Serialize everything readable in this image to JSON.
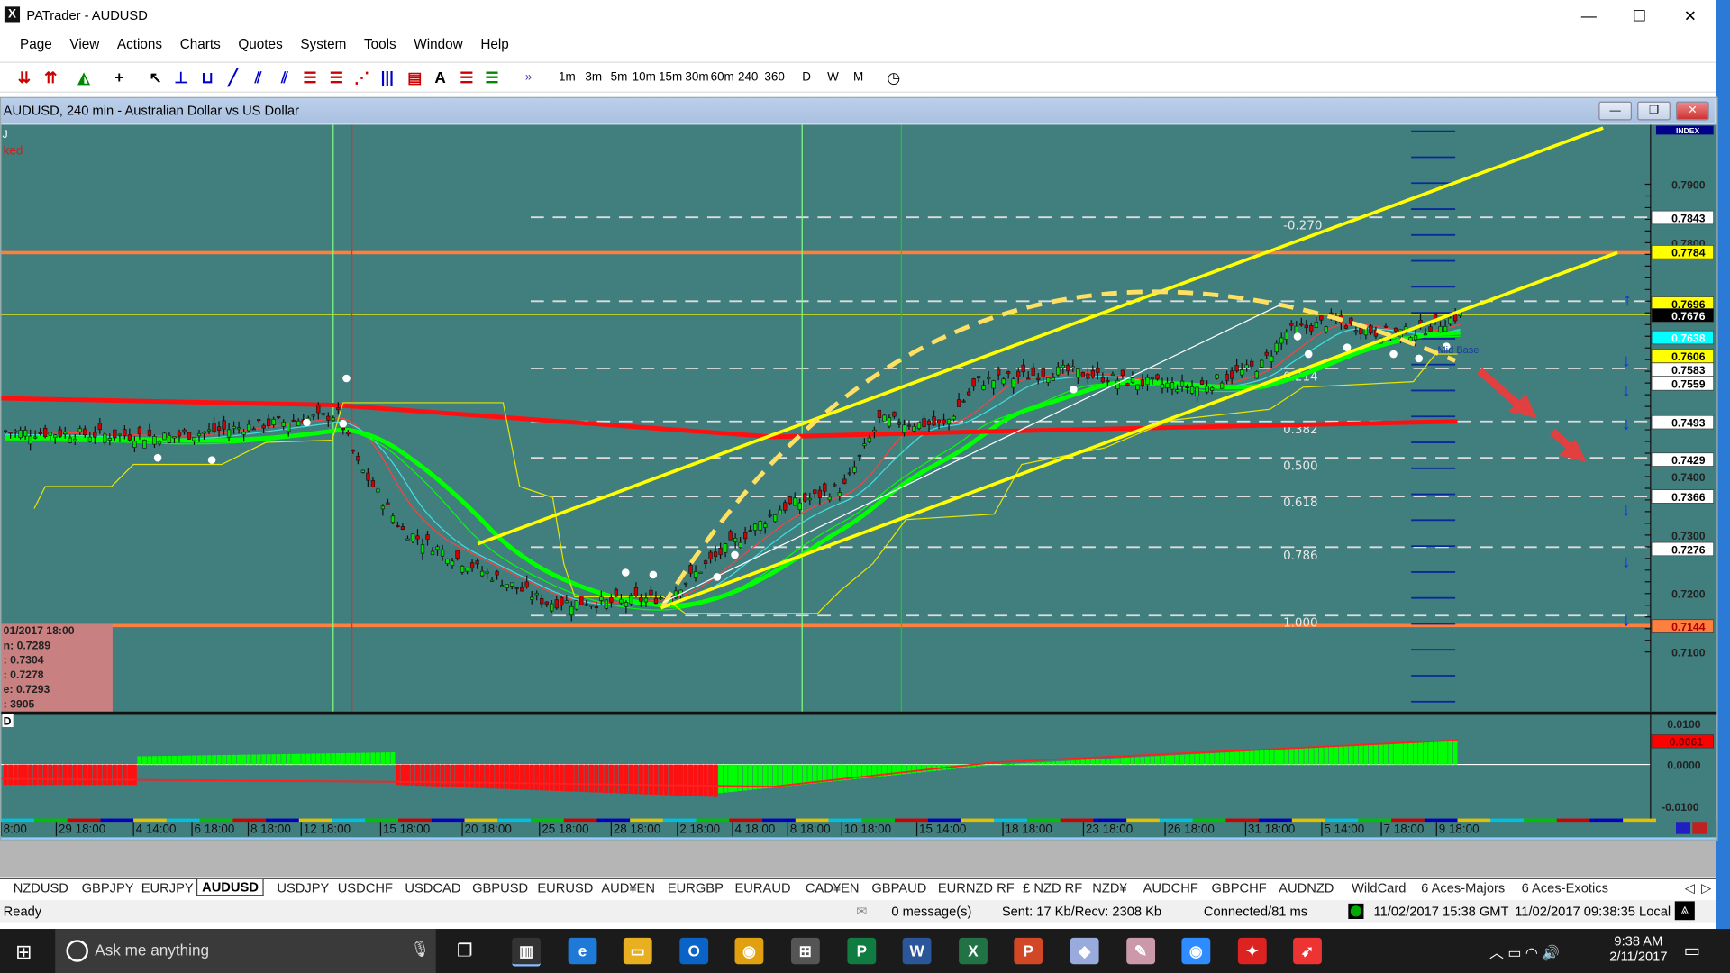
{
  "app": {
    "title": "PATrader - AUDUSD",
    "logo": "X",
    "minimize": "—",
    "maximize": "☐",
    "close": "✕"
  },
  "menu": [
    "Page",
    "View",
    "Actions",
    "Charts",
    "Quotes",
    "System",
    "Tools",
    "Window",
    "Help"
  ],
  "toolbar": {
    "tools": [
      "buy-arrows-icon",
      "sell-arrows-icon",
      "chart-type-icon",
      "crosshair-icon",
      "cursor-icon",
      "horizontal-line-icon",
      "vertical-line-icon",
      "trend-line-icon",
      "channel-icon",
      "regression-channel-icon",
      "fibonacci-retracement-icon",
      "fibonacci-extension-icon",
      "gann-fan-icon",
      "cycle-lines-icon",
      "price-label-icon",
      "text-icon",
      "pattern-icon",
      "rsi-icon"
    ],
    "overflow": "»",
    "timeframes": [
      "1m",
      "3m",
      "5m",
      "10m",
      "15m",
      "30m",
      "60m",
      "240",
      "360"
    ],
    "periods": [
      "D",
      "W",
      "M"
    ],
    "clock_icon": "clock-icon"
  },
  "chart": {
    "title": "AUDUSD, 240 min - Australian Dollar vs US Dollar",
    "left_marker": "J",
    "left_status": "ked",
    "index_label": "INDEX",
    "ohlc_box": {
      "date": "01/2017 18:00",
      "open": "n: 0.7289",
      "high": ": 0.7304",
      "low": ": 0.7278",
      "close": "e: 0.7293",
      "volume": ": 3905"
    },
    "fib_levels": [
      "-0.270",
      "0.214",
      "0.382",
      "0.500",
      "0.618",
      "0.786",
      "1.000"
    ],
    "annotation": "Mid Base",
    "price_axis": {
      "max": 0.79,
      "min": 0.71,
      "labels": [
        "0.7900",
        "0.7800",
        "0.7400",
        "0.7300",
        "0.7200",
        "0.7100"
      ]
    },
    "price_tags": [
      {
        "value": "0.7843",
        "bg": "#ffffff",
        "fg": "#000000"
      },
      {
        "value": "0.7784",
        "bg": "#ffff00",
        "fg": "#000000"
      },
      {
        "value": "0.7696",
        "bg": "#ffff00",
        "fg": "#000000"
      },
      {
        "value": "0.7676",
        "bg": "#000000",
        "fg": "#ffffff"
      },
      {
        "value": "0.7638",
        "bg": "#00ffff",
        "fg": "#ffffff"
      },
      {
        "value": "0.7606",
        "bg": "#ffff00",
        "fg": "#000000"
      },
      {
        "value": "0.7583",
        "bg": "#ffffff",
        "fg": "#000000"
      },
      {
        "value": "0.7559",
        "bg": "#ffffff",
        "fg": "#000000"
      },
      {
        "value": "0.7493",
        "bg": "#ffffff",
        "fg": "#000000"
      },
      {
        "value": "0.7429",
        "bg": "#ffffff",
        "fg": "#000000"
      },
      {
        "value": "0.7366",
        "bg": "#ffffff",
        "fg": "#000000"
      },
      {
        "value": "0.7276",
        "bg": "#ffffff",
        "fg": "#000000"
      },
      {
        "value": "0.7144",
        "bg": "#ff7f3f",
        "fg": "#b00000"
      }
    ],
    "price_path": [
      [
        0,
        0.7477
      ],
      [
        33,
        0.7468
      ],
      [
        67,
        0.7506
      ],
      [
        71,
        0.7421
      ],
      [
        80,
        0.7308
      ],
      [
        93,
        0.7251
      ],
      [
        109,
        0.7185
      ],
      [
        122,
        0.7185
      ],
      [
        133,
        0.7194
      ],
      [
        147,
        0.7289
      ],
      [
        156,
        0.7345
      ],
      [
        169,
        0.7383
      ],
      [
        176,
        0.7496
      ],
      [
        189,
        0.7487
      ],
      [
        196,
        0.7562
      ],
      [
        213,
        0.7581
      ],
      [
        227,
        0.7562
      ],
      [
        240,
        0.7553
      ],
      [
        253,
        0.7591
      ],
      [
        258,
        0.7647
      ],
      [
        267,
        0.7666
      ],
      [
        276,
        0.7647
      ],
      [
        284,
        0.7647
      ],
      [
        293,
        0.7676
      ]
    ],
    "indicator": {
      "marker": "D",
      "axis_labels": [
        "0.0100",
        "0.0000",
        "-0.0100"
      ],
      "current": "0.0061",
      "histogram": [
        [
          0,
          27,
          -0.005,
          -0.005
        ],
        [
          27,
          79,
          0.002,
          0.003
        ],
        [
          79,
          144,
          -0.005,
          -0.008
        ],
        [
          144,
          200,
          -0.007,
          0.0
        ],
        [
          200,
          293,
          0.0,
          0.006
        ]
      ]
    },
    "date_labels": [
      "8:00",
      "29 18:00",
      "4 14:00",
      "6 18:00",
      "8 18:00",
      "12 18:00",
      "15 18:00",
      "20 18:00",
      "25 18:00",
      "28 18:00",
      "2 18:00",
      "4 18:00",
      "8 18:00",
      "10 18:00",
      "15 14:00",
      "18 18:00",
      "23 18:00",
      "26 18:00",
      "31 18:00",
      "5 14:00",
      "7 18:00",
      "9 18:00"
    ],
    "colors": {
      "background": "#417e7e",
      "up": "#00e000",
      "down": "#d00000",
      "channel": "#ffff00",
      "ma_fast": "#00ff00",
      "ma_slow": "#ff0000",
      "level": "#ff7f3f"
    }
  },
  "tabs": {
    "items": [
      "NZDUSD",
      "GBPJPY",
      "EURJPY",
      "AUDUSD",
      "USDJPY",
      "USDCHF",
      "USDCAD",
      "GBPUSD",
      "EURUSD",
      "AUD¥EN",
      "EURGBP",
      "EURAUD",
      "CAD¥EN",
      "GBPAUD",
      "EURNZD RF",
      "£ NZD RF",
      "NZD¥",
      "AUDCHF",
      "GBPCHF",
      "AUDNZD",
      "WildCard",
      "6 Aces-Majors",
      "6 Aces-Exotics"
    ],
    "active": "AUDUSD"
  },
  "status": {
    "ready": "Ready",
    "messages": "0 message(s)",
    "traffic": "Sent: 17 Kb/Recv: 2308 Kb",
    "connection": "Connected/81 ms",
    "gmt": "11/02/2017 15:38 GMT",
    "local": "11/02/2017 09:38:35 Local"
  },
  "taskbar": {
    "search_placeholder": "Ask me anything",
    "time": "9:38 AM",
    "date": "2/11/2017",
    "apps": [
      "patrader",
      "edge",
      "file-explorer",
      "outlook",
      "chrome",
      "store",
      "publisher",
      "word",
      "excel",
      "powerpoint",
      "app-9",
      "app-10",
      "zoom",
      "app-12",
      "app-13"
    ]
  }
}
